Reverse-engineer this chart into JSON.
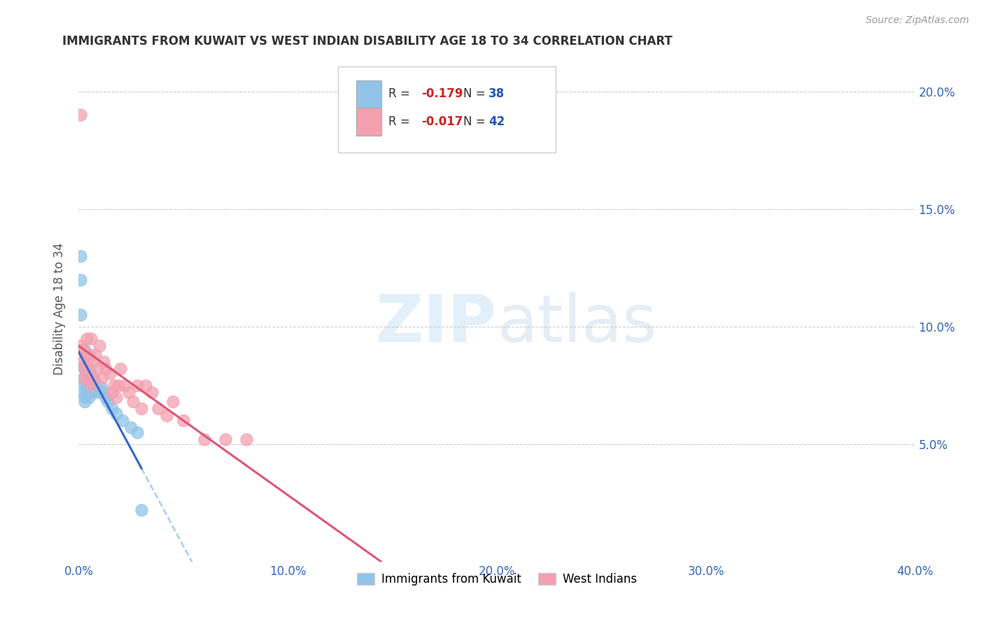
{
  "title": "IMMIGRANTS FROM KUWAIT VS WEST INDIAN DISABILITY AGE 18 TO 34 CORRELATION CHART",
  "source_text": "Source: ZipAtlas.com",
  "ylabel": "Disability Age 18 to 34",
  "x_min": 0.0,
  "x_max": 0.4,
  "y_min": 0.0,
  "y_max": 0.215,
  "y_ticks": [
    0.05,
    0.1,
    0.15,
    0.2
  ],
  "y_tick_labels": [
    "5.0%",
    "10.0%",
    "15.0%",
    "20.0%"
  ],
  "x_ticks": [
    0.0,
    0.1,
    0.2,
    0.3,
    0.4
  ],
  "x_tick_labels": [
    "0.0%",
    "10.0%",
    "20.0%",
    "30.0%",
    "40.0%"
  ],
  "kuwait_color": "#91c4e8",
  "westindian_color": "#f4a0b0",
  "kuwait_line_color": "#3366cc",
  "westindian_line_color": "#dd5577",
  "kuwait_dash_color": "#aaccee",
  "kuwait_R": -0.179,
  "kuwait_N": 38,
  "westindian_R": -0.017,
  "westindian_N": 42,
  "legend_label_1": "Immigrants from Kuwait",
  "legend_label_2": "West Indians",
  "background_color": "#ffffff",
  "grid_color": "#cccccc",
  "title_color": "#333333",
  "axis_tick_color": "#3366bb",
  "r_color": "#cc2222",
  "n_color": "#2255bb",
  "kuwait_points_x": [
    0.001,
    0.001,
    0.001,
    0.002,
    0.002,
    0.002,
    0.003,
    0.003,
    0.003,
    0.003,
    0.003,
    0.004,
    0.004,
    0.004,
    0.004,
    0.005,
    0.005,
    0.005,
    0.005,
    0.006,
    0.006,
    0.006,
    0.007,
    0.007,
    0.008,
    0.008,
    0.009,
    0.01,
    0.011,
    0.012,
    0.013,
    0.014,
    0.016,
    0.018,
    0.021,
    0.025,
    0.028,
    0.03
  ],
  "kuwait_points_y": [
    0.13,
    0.12,
    0.105,
    0.083,
    0.078,
    0.072,
    0.09,
    0.082,
    0.075,
    0.07,
    0.068,
    0.088,
    0.08,
    0.075,
    0.072,
    0.082,
    0.078,
    0.073,
    0.07,
    0.08,
    0.075,
    0.072,
    0.078,
    0.072,
    0.076,
    0.073,
    0.074,
    0.072,
    0.074,
    0.072,
    0.07,
    0.068,
    0.065,
    0.063,
    0.06,
    0.057,
    0.055,
    0.022
  ],
  "westindian_points_x": [
    0.001,
    0.001,
    0.002,
    0.002,
    0.003,
    0.003,
    0.003,
    0.004,
    0.004,
    0.004,
    0.005,
    0.005,
    0.006,
    0.006,
    0.007,
    0.007,
    0.008,
    0.009,
    0.01,
    0.011,
    0.012,
    0.013,
    0.015,
    0.016,
    0.017,
    0.018,
    0.019,
    0.02,
    0.022,
    0.024,
    0.026,
    0.028,
    0.03,
    0.032,
    0.035,
    0.038,
    0.042,
    0.045,
    0.05,
    0.06,
    0.07,
    0.08
  ],
  "westindian_points_y": [
    0.19,
    0.092,
    0.085,
    0.09,
    0.088,
    0.082,
    0.078,
    0.095,
    0.085,
    0.08,
    0.088,
    0.078,
    0.095,
    0.075,
    0.085,
    0.078,
    0.088,
    0.082,
    0.092,
    0.078,
    0.085,
    0.082,
    0.08,
    0.072,
    0.075,
    0.07,
    0.075,
    0.082,
    0.075,
    0.072,
    0.068,
    0.075,
    0.065,
    0.075,
    0.072,
    0.065,
    0.062,
    0.068,
    0.06,
    0.052,
    0.052,
    0.052
  ]
}
